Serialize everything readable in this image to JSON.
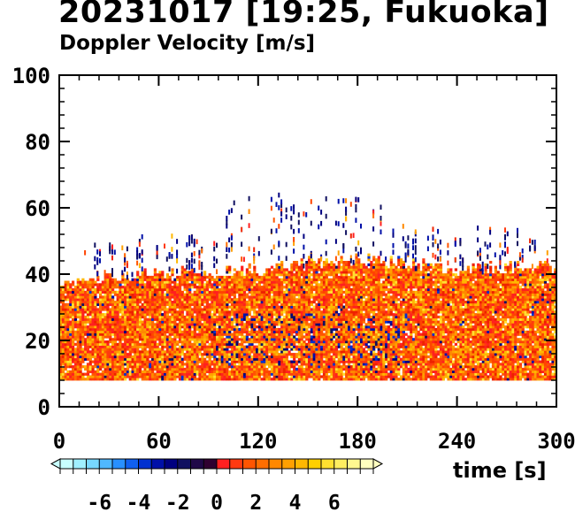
{
  "title": "20231017 [19:25, Fukuoka]",
  "subtitle": "Doppler Velocity [m/s]",
  "chart_data": {
    "type": "heatmap",
    "title": "20231017 [19:25, Fukuoka]",
    "subtitle": "Doppler Velocity [m/s]",
    "xlabel": "time [s]",
    "ylabel": "",
    "xlim": [
      0,
      300
    ],
    "ylim": [
      0,
      100
    ],
    "xticks": [
      "0",
      "60",
      "120",
      "180",
      "240",
      "300"
    ],
    "yticks": [
      "0",
      "20",
      "40",
      "60",
      "80",
      "100"
    ],
    "xtick_values": [
      0,
      60,
      120,
      180,
      240,
      300
    ],
    "ytick_values": [
      0,
      20,
      40,
      60,
      80,
      100
    ],
    "data_bottom": 8,
    "echo_top_profile": {
      "time": [
        0,
        30,
        60,
        90,
        120,
        150,
        180,
        210,
        240,
        270,
        300
      ],
      "height": [
        36,
        38,
        40,
        40,
        41,
        43,
        44,
        43,
        41,
        42,
        42
      ]
    },
    "colorbar": {
      "vmin": -8,
      "vmax": 8,
      "ticks": [
        "-6",
        "-4",
        "-2",
        "0",
        "2",
        "4",
        "6"
      ],
      "tick_values": [
        -6,
        -4,
        -2,
        0,
        2,
        4,
        6
      ],
      "colors": [
        "#c8ffff",
        "#a0f0ff",
        "#78d8ff",
        "#50b8ff",
        "#2890ff",
        "#1060f0",
        "#0030d0",
        "#0010a8",
        "#000080",
        "#101060",
        "#200848",
        "#300030",
        "#ff2020",
        "#ff3a10",
        "#ff5500",
        "#ff6e00",
        "#ff8800",
        "#ffa000",
        "#ffb800",
        "#ffd000",
        "#ffe030",
        "#ffee60",
        "#fff890",
        "#ffffc0"
      ]
    }
  }
}
